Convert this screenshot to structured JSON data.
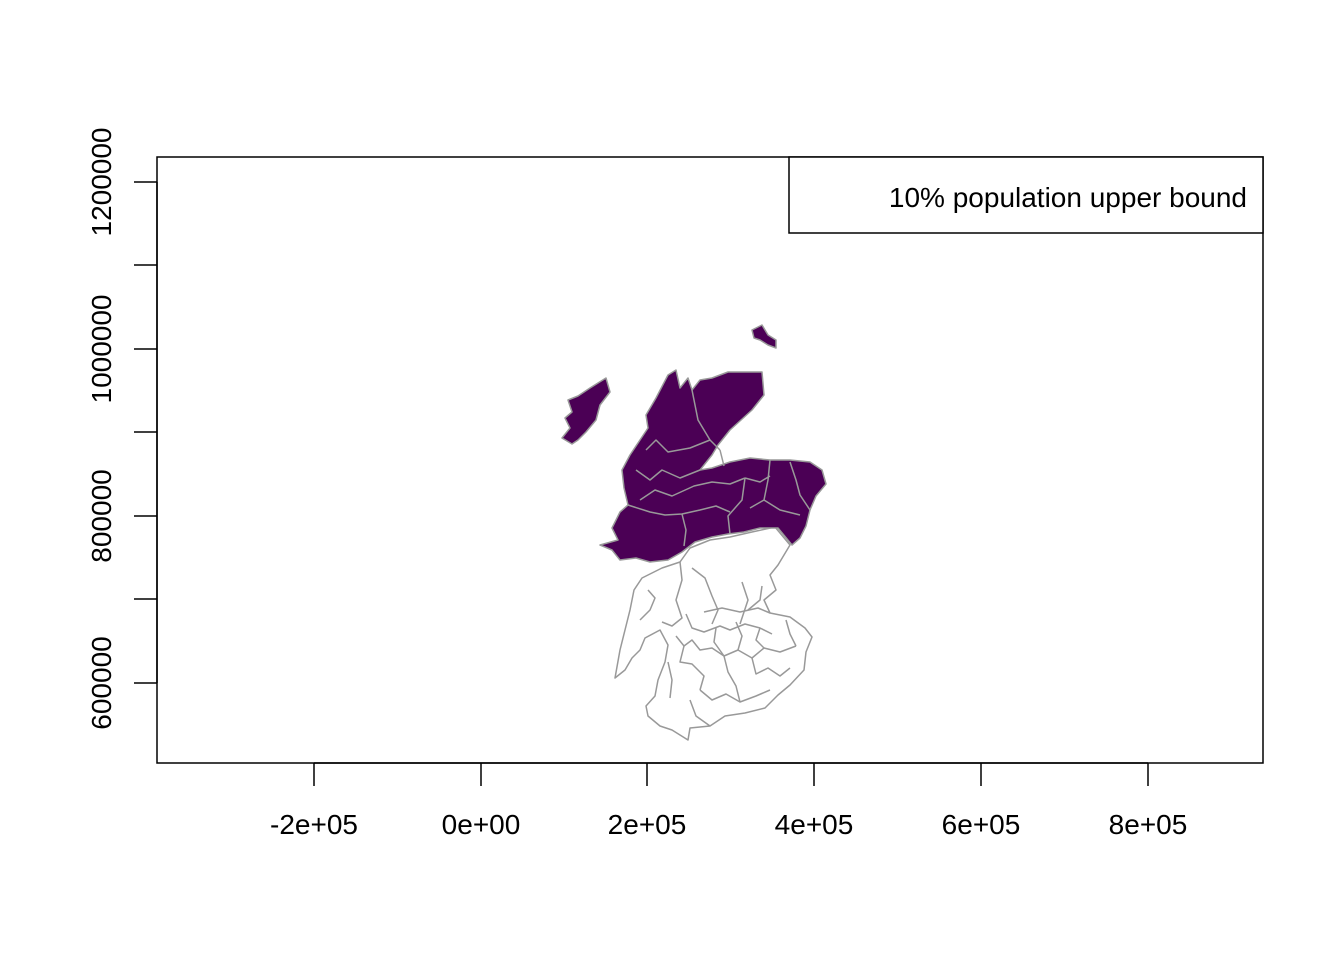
{
  "legend": {
    "text": "10% population upper bound"
  },
  "axes": {
    "x": {
      "ticks": [
        {
          "value": -200000,
          "label": "-2e+05"
        },
        {
          "value": 0,
          "label": "0e+00"
        },
        {
          "value": 200000,
          "label": "2e+05"
        },
        {
          "value": 400000,
          "label": "4e+05"
        },
        {
          "value": 600000,
          "label": "6e+05"
        },
        {
          "value": 800000,
          "label": "8e+05"
        }
      ]
    },
    "y": {
      "major_ticks": [
        {
          "value": 600000,
          "label": "600000"
        },
        {
          "value": 800000,
          "label": "800000"
        },
        {
          "value": 1000000,
          "label": "1000000"
        },
        {
          "value": 1200000,
          "label": "1200000"
        }
      ],
      "minor_ticks": [
        700000,
        900000,
        1100000
      ]
    }
  },
  "map": {
    "fill_color_highlight": "#4b0055",
    "fill_color_other": "#ffffff",
    "border_color": "#999999",
    "highlighted_region": "northern Scotland"
  }
}
